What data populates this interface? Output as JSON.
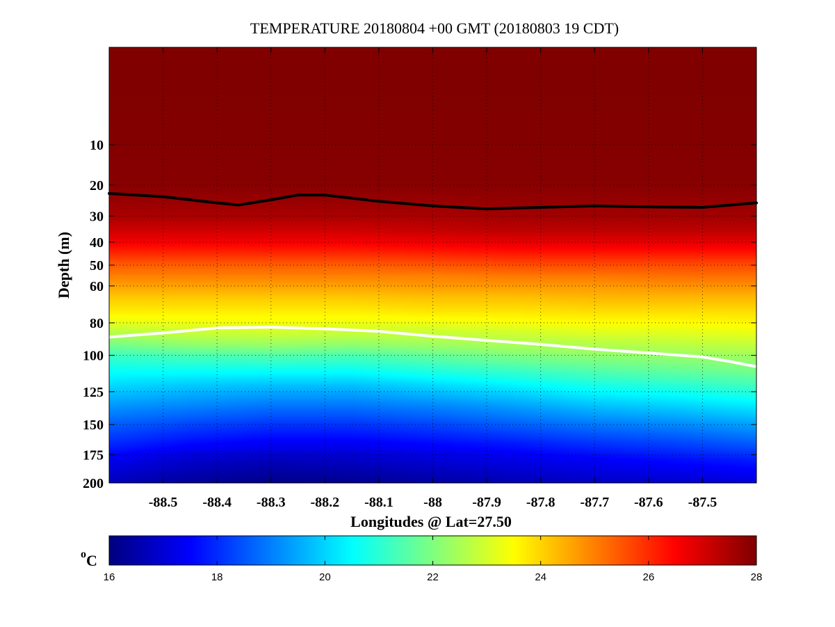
{
  "chart_data": {
    "type": "heatmap",
    "title": "TEMPERATURE 20180804 +00 GMT (20180803 19 CDT)",
    "xlabel": "Longitudes @ Lat=27.50",
    "ylabel": "Depth (m)",
    "xlim": [
      -88.6,
      -87.4
    ],
    "ylim": [
      200,
      0
    ],
    "y_scale": "sqrt",
    "grid": true,
    "x_ticks": [
      -88.5,
      -88.4,
      -88.3,
      -88.2,
      -88.1,
      -88.0,
      -87.9,
      -87.8,
      -87.7,
      -87.6,
      -87.5
    ],
    "x_tick_labels": [
      "-88.5",
      "-88.4",
      "-88.3",
      "-88.2",
      "-88.1",
      "-88",
      "-87.9",
      "-87.8",
      "-87.7",
      "-87.6",
      "-87.5"
    ],
    "y_ticks": [
      10,
      20,
      30,
      40,
      50,
      60,
      80,
      100,
      125,
      150,
      175,
      200
    ],
    "y_tick_labels": [
      "10",
      "20",
      "30",
      "40",
      "50",
      "60",
      "80",
      "100",
      "125",
      "150",
      "175",
      "200"
    ],
    "colorbar": {
      "label": "oC",
      "label_base": "o",
      "label_unit": "C",
      "range": [
        16,
        28
      ],
      "ticks": [
        16,
        18,
        20,
        22,
        24,
        26,
        28
      ],
      "tick_labels": [
        "16",
        "18",
        "20",
        "22",
        "24",
        "26",
        "28"
      ],
      "colormap": "jet"
    },
    "contours": [
      {
        "name": "",
        "color": "#000000",
        "lon": [
          -88.6,
          -88.5,
          -88.45,
          -88.4,
          -88.36,
          -88.3,
          -88.25,
          -88.2,
          -88.1,
          -88.0,
          -87.9,
          -87.8,
          -87.7,
          -87.6,
          -87.5,
          -87.4
        ],
        "depth": [
          22.5,
          23.5,
          24.5,
          25.5,
          26.2,
          24.5,
          23.0,
          23.0,
          25.0,
          26.5,
          27.5,
          27.0,
          26.5,
          26.8,
          27.0,
          25.5
        ]
      },
      {
        "name": "",
        "color": "#ffffff",
        "lon": [
          -88.6,
          -88.5,
          -88.4,
          -88.3,
          -88.2,
          -88.1,
          -88.0,
          -87.9,
          -87.8,
          -87.7,
          -87.6,
          -87.5,
          -87.45,
          -87.4
        ],
        "depth": [
          88.5,
          86.0,
          83.0,
          82.5,
          83.5,
          85.0,
          88.0,
          90.5,
          93.0,
          96.0,
          98.5,
          101.0,
          104.0,
          107.5
        ]
      }
    ],
    "profile_depths": [
      0,
      20,
      30,
      35,
      40,
      45,
      50,
      55,
      60,
      65,
      70,
      75,
      80,
      85,
      90,
      95,
      100,
      110,
      120,
      135,
      150,
      165,
      180,
      200
    ],
    "profiles": [
      {
        "lon": -88.6,
        "temps": [
          28.0,
          27.9,
          27.5,
          27.1,
          26.6,
          26.0,
          25.4,
          25.0,
          24.6,
          24.2,
          23.9,
          23.6,
          23.2,
          22.7,
          22.2,
          21.7,
          21.2,
          20.6,
          20.1,
          19.3,
          18.6,
          18.0,
          17.3,
          16.7
        ]
      },
      {
        "lon": -88.45,
        "temps": [
          28.0,
          27.9,
          27.5,
          27.1,
          26.6,
          26.0,
          25.4,
          25.0,
          24.6,
          24.2,
          23.9,
          23.6,
          23.3,
          22.9,
          22.5,
          22.0,
          21.4,
          20.6,
          19.9,
          19.1,
          18.3,
          17.6,
          16.9,
          16.3
        ]
      },
      {
        "lon": -88.3,
        "temps": [
          28.0,
          27.9,
          27.5,
          27.1,
          26.6,
          26.0,
          25.4,
          25.0,
          24.6,
          24.2,
          23.9,
          23.6,
          23.4,
          23.0,
          22.6,
          22.1,
          21.5,
          20.6,
          19.8,
          18.9,
          18.1,
          17.4,
          16.7,
          16.1
        ]
      },
      {
        "lon": -88.15,
        "temps": [
          28.0,
          27.9,
          27.5,
          27.1,
          26.6,
          26.0,
          25.4,
          25.0,
          24.6,
          24.2,
          23.9,
          23.6,
          23.3,
          22.9,
          22.5,
          22.0,
          21.4,
          20.6,
          19.8,
          18.9,
          18.1,
          17.4,
          16.8,
          16.2
        ]
      },
      {
        "lon": -88.0,
        "temps": [
          28.0,
          27.9,
          27.5,
          27.2,
          26.7,
          26.1,
          25.5,
          25.0,
          24.7,
          24.3,
          24.0,
          23.7,
          23.3,
          22.9,
          22.6,
          22.2,
          21.7,
          20.9,
          20.1,
          19.1,
          18.3,
          17.6,
          17.0,
          16.4
        ]
      },
      {
        "lon": -87.85,
        "temps": [
          28.0,
          27.9,
          27.6,
          27.3,
          26.8,
          26.2,
          25.6,
          25.1,
          24.7,
          24.3,
          24.0,
          23.7,
          23.4,
          23.0,
          22.7,
          22.4,
          22.0,
          21.2,
          20.4,
          19.4,
          18.6,
          17.8,
          17.2,
          16.6
        ]
      },
      {
        "lon": -87.7,
        "temps": [
          28.0,
          27.9,
          27.6,
          27.3,
          26.8,
          26.2,
          25.6,
          25.1,
          24.7,
          24.4,
          24.1,
          23.8,
          23.5,
          23.2,
          22.8,
          22.5,
          22.2,
          21.5,
          20.8,
          19.8,
          18.9,
          18.1,
          17.4,
          16.8
        ]
      },
      {
        "lon": -87.55,
        "temps": [
          28.0,
          27.9,
          27.6,
          27.3,
          26.8,
          26.2,
          25.6,
          25.2,
          24.8,
          24.4,
          24.1,
          23.8,
          23.5,
          23.2,
          22.9,
          22.6,
          22.3,
          21.7,
          21.0,
          20.0,
          19.1,
          18.3,
          17.6,
          16.9
        ]
      },
      {
        "lon": -87.4,
        "temps": [
          28.0,
          27.9,
          27.6,
          27.3,
          26.8,
          26.2,
          25.6,
          25.2,
          24.8,
          24.4,
          24.1,
          23.8,
          23.6,
          23.3,
          23.0,
          22.7,
          22.4,
          21.9,
          21.3,
          20.3,
          19.4,
          18.6,
          17.8,
          17.1
        ]
      }
    ]
  }
}
